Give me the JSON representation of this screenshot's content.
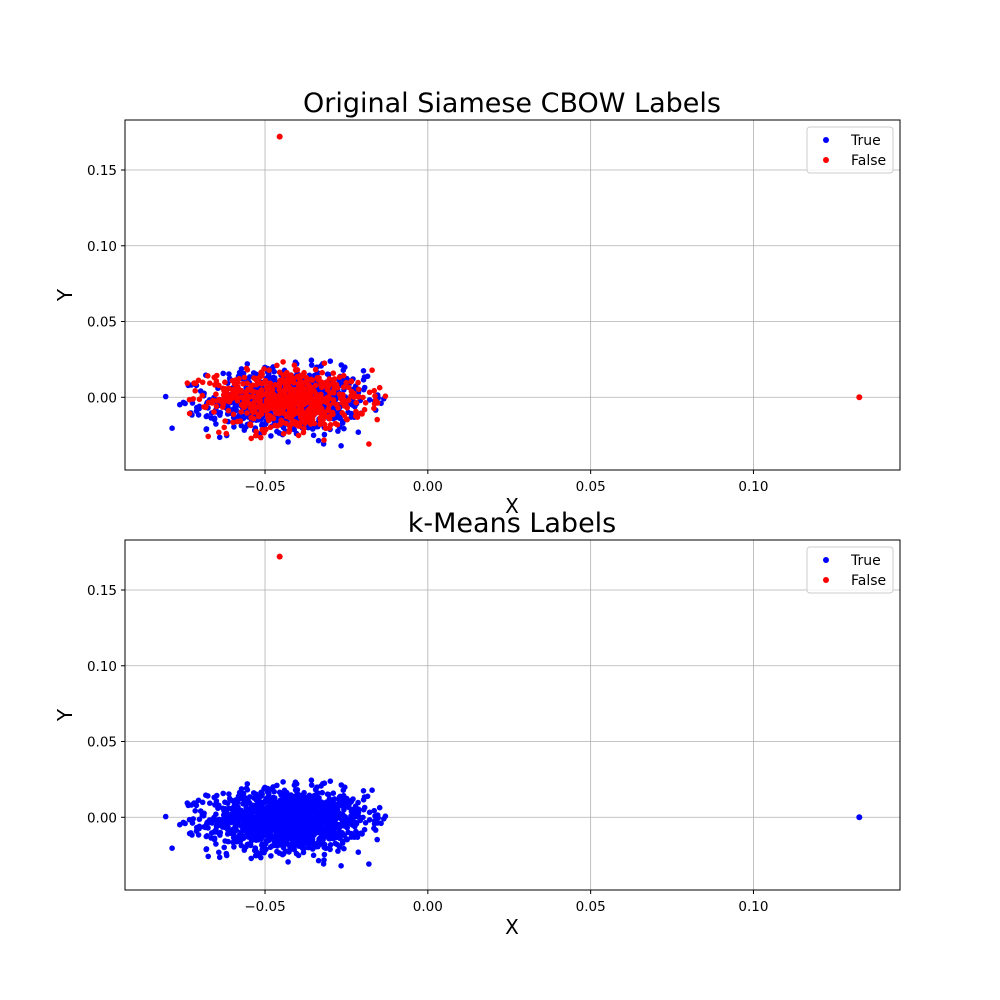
{
  "chart_data": [
    {
      "type": "scatter",
      "title": "Original Siamese CBOW Labels",
      "xlabel": "X",
      "ylabel": "Y",
      "xlim": [
        -0.093,
        0.145
      ],
      "ylim": [
        -0.048,
        0.183
      ],
      "xticks": [
        -0.05,
        0.0,
        0.05,
        0.1
      ],
      "xtick_labels": [
        "−0.05",
        "0.00",
        "0.05",
        "0.10"
      ],
      "yticks": [
        0.0,
        0.05,
        0.1,
        0.15
      ],
      "ytick_labels": [
        "0.00",
        "0.05",
        "0.10",
        "0.15"
      ],
      "grid": true,
      "legend": "top-right",
      "cluster": {
        "center": [
          -0.043,
          -0.002
        ],
        "spread": [
          0.012,
          0.01
        ],
        "range_x": [
          -0.081,
          -0.011
        ],
        "range_y": [
          -0.033,
          0.029
        ]
      },
      "outliers": [
        {
          "x": -0.0455,
          "y": 0.172
        },
        {
          "x": 0.1325,
          "y": 0.0
        }
      ],
      "series": [
        {
          "name": "True",
          "color": "#0000ff",
          "share": 0.6,
          "outliers": []
        },
        {
          "name": "False",
          "color": "#ff0000",
          "share": 0.4,
          "outliers": [
            {
              "x": -0.0455,
              "y": 0.172
            },
            {
              "x": 0.1325,
              "y": 0.0
            }
          ]
        }
      ]
    },
    {
      "type": "scatter",
      "title": "k-Means Labels",
      "xlabel": "X",
      "ylabel": "Y",
      "xlim": [
        -0.093,
        0.145
      ],
      "ylim": [
        -0.048,
        0.183
      ],
      "xticks": [
        -0.05,
        0.0,
        0.05,
        0.1
      ],
      "xtick_labels": [
        "−0.05",
        "0.00",
        "0.05",
        "0.10"
      ],
      "yticks": [
        0.0,
        0.05,
        0.1,
        0.15
      ],
      "ytick_labels": [
        "0.00",
        "0.05",
        "0.10",
        "0.15"
      ],
      "grid": true,
      "legend": "top-right",
      "cluster": {
        "center": [
          -0.043,
          -0.002
        ],
        "spread": [
          0.012,
          0.01
        ],
        "range_x": [
          -0.081,
          -0.011
        ],
        "range_y": [
          -0.033,
          0.029
        ]
      },
      "outliers": [
        {
          "x": -0.0455,
          "y": 0.172
        },
        {
          "x": 0.1325,
          "y": 0.0
        }
      ],
      "series": [
        {
          "name": "True",
          "color": "#0000ff",
          "share": 1.0,
          "outliers": [
            {
              "x": 0.1325,
              "y": 0.0
            }
          ]
        },
        {
          "name": "False",
          "color": "#ff0000",
          "share": 0.0,
          "outliers": [
            {
              "x": -0.0455,
              "y": 0.172
            }
          ]
        }
      ]
    }
  ]
}
